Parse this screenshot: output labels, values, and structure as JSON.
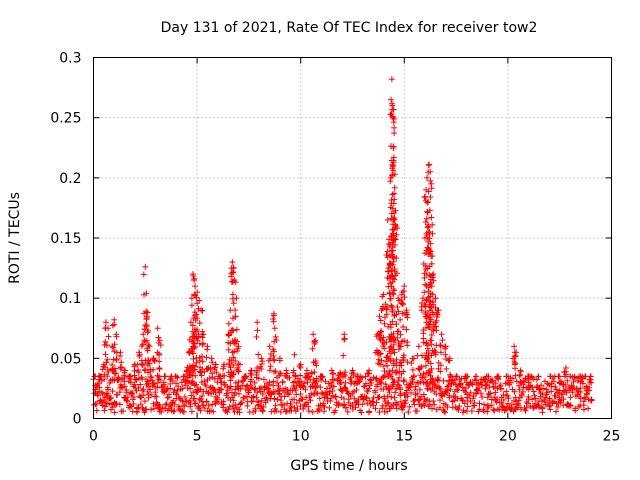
{
  "chart_data": {
    "type": "scatter",
    "title": "Day 131 of 2021, Rate Of TEC Index for receiver tow2",
    "xlabel": "GPS time / hours",
    "ylabel": "ROTI / TECUs",
    "xlim": [
      0,
      25
    ],
    "ylim": [
      0,
      0.3
    ],
    "xticks": [
      0,
      5,
      10,
      15,
      20,
      25
    ],
    "yticks": [
      0,
      0.05,
      0.1,
      0.15,
      0.2,
      0.25,
      0.3
    ],
    "xtick_labels": [
      "0",
      "5",
      "10",
      "15",
      "20",
      "25"
    ],
    "ytick_labels": [
      "0",
      "0.05",
      "0.1",
      "0.15",
      "0.2",
      "0.25",
      "0.3"
    ],
    "grid": true,
    "marker": "+",
    "color": "#ff0000",
    "series": [
      {
        "points": [
          [
            0.1,
            0.012
          ],
          [
            0.2,
            0.028
          ],
          [
            0.3,
            0.035
          ],
          [
            0.5,
            0.045
          ],
          [
            0.6,
            0.08
          ],
          [
            0.7,
            0.075
          ],
          [
            0.9,
            0.06
          ],
          [
            1.0,
            0.082
          ],
          [
            1.1,
            0.07
          ],
          [
            1.3,
            0.055
          ],
          [
            1.5,
            0.04
          ],
          [
            1.8,
            0.03
          ],
          [
            2.0,
            0.045
          ],
          [
            2.2,
            0.055
          ],
          [
            2.4,
            0.07
          ],
          [
            2.5,
            0.126
          ],
          [
            2.55,
            0.104
          ],
          [
            2.6,
            0.088
          ],
          [
            2.7,
            0.06
          ],
          [
            2.9,
            0.05
          ],
          [
            3.1,
            0.075
          ],
          [
            3.2,
            0.065
          ],
          [
            3.4,
            0.03
          ],
          [
            3.7,
            0.025
          ],
          [
            4.0,
            0.02
          ],
          [
            4.3,
            0.025
          ],
          [
            4.5,
            0.04
          ],
          [
            4.6,
            0.055
          ],
          [
            4.7,
            0.08
          ],
          [
            4.75,
            0.1
          ],
          [
            4.8,
            0.12
          ],
          [
            4.85,
            0.115
          ],
          [
            4.9,
            0.11
          ],
          [
            5.0,
            0.105
          ],
          [
            5.1,
            0.098
          ],
          [
            5.2,
            0.09
          ],
          [
            5.3,
            0.07
          ],
          [
            5.5,
            0.06
          ],
          [
            5.7,
            0.05
          ],
          [
            5.9,
            0.045
          ],
          [
            6.1,
            0.035
          ],
          [
            6.3,
            0.045
          ],
          [
            6.5,
            0.07
          ],
          [
            6.6,
            0.09
          ],
          [
            6.7,
            0.13
          ],
          [
            6.75,
            0.125
          ],
          [
            6.8,
            0.115
          ],
          [
            6.9,
            0.1
          ],
          [
            7.0,
            0.06
          ],
          [
            7.3,
            0.035
          ],
          [
            7.6,
            0.04
          ],
          [
            7.9,
            0.08
          ],
          [
            8.1,
            0.05
          ],
          [
            8.5,
            0.06
          ],
          [
            8.7,
            0.087
          ],
          [
            8.75,
            0.075
          ],
          [
            9.0,
            0.05
          ],
          [
            9.3,
            0.04
          ],
          [
            9.7,
            0.053
          ],
          [
            10.0,
            0.045
          ],
          [
            10.3,
            0.04
          ],
          [
            10.6,
            0.07
          ],
          [
            10.7,
            0.065
          ],
          [
            11.0,
            0.035
          ],
          [
            11.5,
            0.04
          ],
          [
            11.9,
            0.038
          ],
          [
            12.1,
            0.07
          ],
          [
            12.5,
            0.04
          ],
          [
            12.8,
            0.03
          ],
          [
            13.3,
            0.04
          ],
          [
            13.7,
            0.07
          ],
          [
            13.8,
            0.085
          ],
          [
            13.9,
            0.09
          ],
          [
            14.0,
            0.103
          ],
          [
            14.1,
            0.095
          ],
          [
            14.2,
            0.165
          ],
          [
            14.25,
            0.145
          ],
          [
            14.3,
            0.128
          ],
          [
            14.35,
            0.2
          ],
          [
            14.4,
            0.282
          ],
          [
            14.42,
            0.26
          ],
          [
            14.45,
            0.25
          ],
          [
            14.5,
            0.217
          ],
          [
            14.55,
            0.203
          ],
          [
            14.6,
            0.16
          ],
          [
            14.7,
            0.1
          ],
          [
            14.8,
            0.082
          ],
          [
            14.9,
            0.105
          ],
          [
            15.0,
            0.11
          ],
          [
            15.1,
            0.09
          ],
          [
            15.4,
            0.05
          ],
          [
            15.7,
            0.06
          ],
          [
            15.9,
            0.1
          ],
          [
            16.0,
            0.15
          ],
          [
            16.05,
            0.19
          ],
          [
            16.1,
            0.2
          ],
          [
            16.15,
            0.18
          ],
          [
            16.2,
            0.211
          ],
          [
            16.25,
            0.205
          ],
          [
            16.3,
            0.195
          ],
          [
            16.35,
            0.135
          ],
          [
            16.4,
            0.12
          ],
          [
            16.5,
            0.1
          ],
          [
            16.6,
            0.09
          ],
          [
            16.8,
            0.07
          ],
          [
            17.0,
            0.06
          ],
          [
            17.2,
            0.05
          ],
          [
            17.5,
            0.035
          ],
          [
            18.0,
            0.03
          ],
          [
            18.5,
            0.028
          ],
          [
            19.0,
            0.03
          ],
          [
            19.5,
            0.025
          ],
          [
            20.0,
            0.03
          ],
          [
            20.3,
            0.06
          ],
          [
            20.4,
            0.055
          ],
          [
            20.6,
            0.04
          ],
          [
            21.0,
            0.03
          ],
          [
            21.5,
            0.025
          ],
          [
            22.0,
            0.028
          ],
          [
            22.5,
            0.03
          ],
          [
            22.8,
            0.042
          ],
          [
            23.0,
            0.025
          ],
          [
            23.5,
            0.022
          ],
          [
            23.8,
            0.02
          ],
          [
            24.0,
            0.015
          ]
        ],
        "baseline_band": [
          0.005,
          0.035
        ]
      }
    ]
  }
}
